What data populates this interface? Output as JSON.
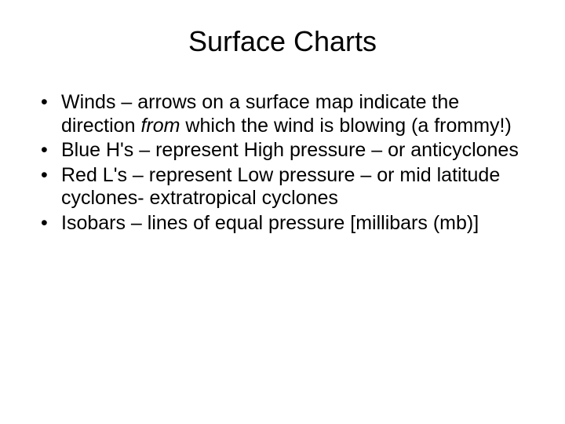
{
  "slide": {
    "title": "Surface Charts",
    "title_fontsize": 36,
    "body_fontsize": 25,
    "background_color": "#ffffff",
    "text_color": "#000000",
    "bullets": [
      {
        "pre": "Winds – arrows on a surface map indicate the direction ",
        "italic": "from",
        "post": " which the wind is blowing (a frommy!)"
      },
      {
        "pre": "Blue H's – represent High pressure – or anticyclones",
        "italic": "",
        "post": ""
      },
      {
        "pre": "Red L's – represent Low pressure – or mid latitude cyclones- extratropical cyclones",
        "italic": "",
        "post": ""
      },
      {
        "pre": "Isobars – lines of equal pressure [millibars (mb)]",
        "italic": "",
        "post": ""
      }
    ]
  }
}
